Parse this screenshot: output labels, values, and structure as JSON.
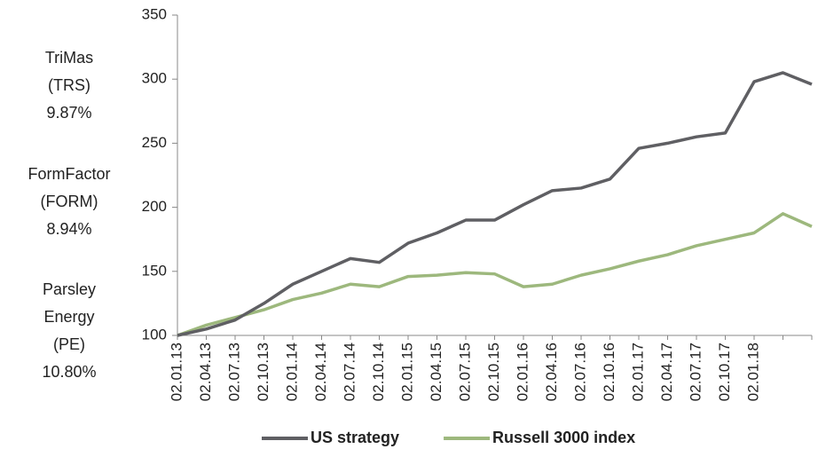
{
  "chart_data": {
    "type": "line",
    "annotations": [
      [
        "TriMas",
        "(TRS)",
        "9.87%"
      ],
      [
        "FormFactor",
        "(FORM)",
        "8.94%"
      ],
      [
        "Parsley",
        "Energy",
        "(PE)",
        "10.80%"
      ]
    ],
    "categories": [
      "02.01.13",
      "02.04.13",
      "02.07.13",
      "02.10.13",
      "02.01.14",
      "02.04.14",
      "02.07.14",
      "02.10.14",
      "02.01.15",
      "02.04.15",
      "02.07.15",
      "02.10.15",
      "02.01.16",
      "02.04.16",
      "02.07.16",
      "02.10.16",
      "02.01.17",
      "02.04.17",
      "02.07.17",
      "02.10.17",
      "02.01.18",
      null,
      null
    ],
    "series": [
      {
        "name": "US strategy",
        "color": "#5f5f63",
        "values": [
          100,
          105,
          112,
          125,
          140,
          150,
          160,
          157,
          172,
          180,
          190,
          190,
          202,
          213,
          215,
          222,
          246,
          250,
          255,
          258,
          298,
          305,
          296
        ]
      },
      {
        "name": "Russell 3000 index",
        "color": "#9db87d",
        "values": [
          100,
          108,
          114,
          120,
          128,
          133,
          140,
          138,
          146,
          147,
          149,
          148,
          138,
          140,
          147,
          152,
          158,
          163,
          170,
          175,
          180,
          195,
          185
        ]
      }
    ],
    "ylim": [
      100,
      350
    ],
    "yticks": [
      100,
      150,
      200,
      250,
      300,
      350
    ],
    "grid": false,
    "legend": "bottom"
  }
}
